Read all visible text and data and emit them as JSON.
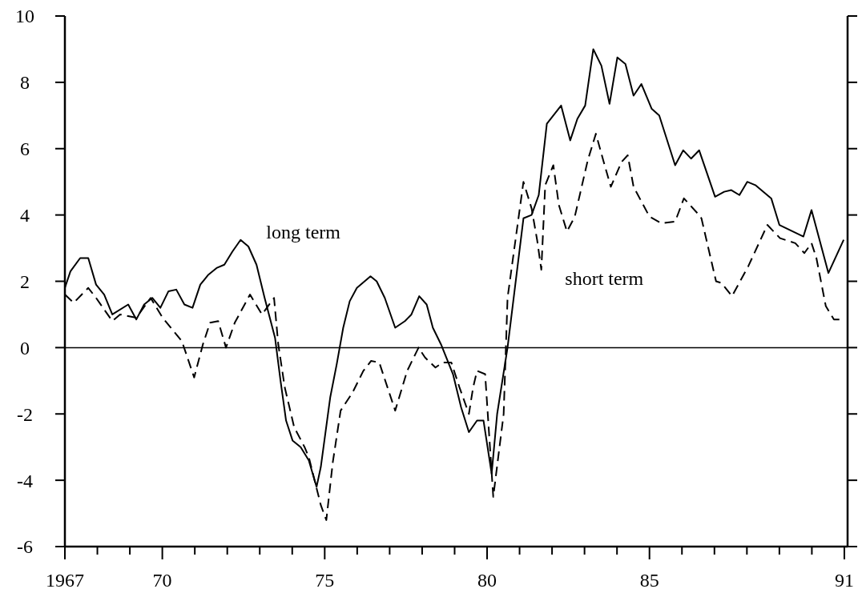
{
  "chart_data": {
    "type": "line",
    "xlim": [
      1967,
      1991.1
    ],
    "ylim": [
      -6,
      10
    ],
    "xticks": [
      {
        "value": 1967,
        "label": "1967"
      },
      {
        "value": 1968,
        "label": null
      },
      {
        "value": 1969,
        "label": null
      },
      {
        "value": 1970,
        "label": "70"
      },
      {
        "value": 1971,
        "label": null
      },
      {
        "value": 1972,
        "label": null
      },
      {
        "value": 1973,
        "label": null
      },
      {
        "value": 1974,
        "label": null
      },
      {
        "value": 1975,
        "label": "75"
      },
      {
        "value": 1976,
        "label": null
      },
      {
        "value": 1977,
        "label": null
      },
      {
        "value": 1978,
        "label": null
      },
      {
        "value": 1979,
        "label": null
      },
      {
        "value": 1980,
        "label": "80"
      },
      {
        "value": 1981,
        "label": null
      },
      {
        "value": 1982,
        "label": null
      },
      {
        "value": 1983,
        "label": null
      },
      {
        "value": 1984,
        "label": null
      },
      {
        "value": 1985,
        "label": "85"
      },
      {
        "value": 1986,
        "label": null
      },
      {
        "value": 1987,
        "label": null
      },
      {
        "value": 1988,
        "label": null
      },
      {
        "value": 1989,
        "label": null
      },
      {
        "value": 1990,
        "label": null
      },
      {
        "value": 1991,
        "label": "91"
      }
    ],
    "yticks": [
      -6,
      -4,
      -2,
      0,
      2,
      4,
      6,
      8,
      10
    ],
    "grid": false,
    "marker": "none",
    "ref_lines": [
      {
        "axis": "y",
        "value": 0,
        "color": "#000000"
      }
    ],
    "series": [
      {
        "name": "long term",
        "color": "#000000",
        "line_style": "solid",
        "x": [
          1967.0,
          1967.17,
          1967.47,
          1967.72,
          1967.96,
          1968.21,
          1968.46,
          1968.95,
          1969.2,
          1969.44,
          1969.69,
          1969.94,
          1970.19,
          1970.43,
          1970.68,
          1970.93,
          1971.17,
          1971.42,
          1971.67,
          1971.91,
          1972.16,
          1972.41,
          1972.65,
          1972.9,
          1973.15,
          1973.47,
          1973.64,
          1973.81,
          1974.01,
          1974.26,
          1974.51,
          1974.75,
          1974.88,
          1975.17,
          1975.37,
          1975.57,
          1975.77,
          1975.99,
          1976.41,
          1976.6,
          1976.85,
          1977.17,
          1977.47,
          1977.67,
          1977.91,
          1978.14,
          1978.33,
          1978.58,
          1978.95,
          1979.2,
          1979.44,
          1979.69,
          1979.89,
          1980.14,
          1980.31,
          1980.63,
          1981.12,
          1981.37,
          1981.59,
          1981.84,
          1982.28,
          1982.56,
          1982.78,
          1983.02,
          1983.27,
          1983.52,
          1983.77,
          1984.01,
          1984.26,
          1984.51,
          1984.75,
          1985.07,
          1985.3,
          1985.79,
          1986.04,
          1986.28,
          1986.53,
          1987.02,
          1987.3,
          1987.52,
          1987.77,
          1988.01,
          1988.26,
          1988.75,
          1989.0,
          1989.74,
          1989.99,
          1990.51,
          1990.98
        ],
        "values": [
          1.8,
          2.3,
          2.7,
          2.7,
          1.9,
          1.6,
          1.0,
          1.3,
          0.85,
          1.3,
          1.5,
          1.2,
          1.7,
          1.75,
          1.3,
          1.2,
          1.9,
          2.2,
          2.4,
          2.5,
          2.9,
          3.25,
          3.05,
          2.5,
          1.5,
          0.3,
          -1.0,
          -2.2,
          -2.8,
          -3.0,
          -3.4,
          -4.2,
          -3.6,
          -1.5,
          -0.5,
          0.6,
          1.4,
          1.8,
          2.15,
          2.0,
          1.5,
          0.6,
          0.8,
          1.0,
          1.55,
          1.3,
          0.6,
          0.1,
          -0.8,
          -1.8,
          -2.55,
          -2.2,
          -2.2,
          -3.8,
          -2.0,
          0,
          3.9,
          4.0,
          4.6,
          6.75,
          7.3,
          6.25,
          6.9,
          7.3,
          9.0,
          8.5,
          7.35,
          8.75,
          8.55,
          7.6,
          7.95,
          7.2,
          7.0,
          5.5,
          5.95,
          5.7,
          5.95,
          4.55,
          4.7,
          4.75,
          4.6,
          5.0,
          4.9,
          4.5,
          3.7,
          3.35,
          4.15,
          2.25,
          3.25
        ]
      },
      {
        "name": "short term",
        "color": "#000000",
        "line_style": "dashed",
        "x": [
          1967.0,
          1967.27,
          1967.72,
          1967.96,
          1968.46,
          1968.7,
          1969.2,
          1969.64,
          1970.01,
          1970.6,
          1970.98,
          1971.25,
          1971.47,
          1971.72,
          1971.96,
          1972.23,
          1972.7,
          1973.07,
          1973.44,
          1973.57,
          1973.77,
          1974.06,
          1974.38,
          1974.51,
          1974.88,
          1975.05,
          1975.25,
          1975.49,
          1975.86,
          1976.19,
          1976.43,
          1976.68,
          1977.17,
          1977.54,
          1977.89,
          1978.09,
          1978.41,
          1978.63,
          1978.9,
          1979.15,
          1979.44,
          1979.57,
          1979.69,
          1979.94,
          1980.19,
          1980.51,
          1980.63,
          1980.98,
          1981.12,
          1981.37,
          1981.54,
          1981.67,
          1981.79,
          1982.04,
          1982.21,
          1982.46,
          1982.7,
          1983.1,
          1983.35,
          1983.59,
          1983.81,
          1984.14,
          1984.33,
          1984.51,
          1985.0,
          1985.37,
          1985.79,
          1986.06,
          1986.48,
          1986.6,
          1987.05,
          1987.22,
          1987.54,
          1988.04,
          1988.63,
          1989.02,
          1989.49,
          1989.77,
          1989.99,
          1990.14,
          1990.43,
          1990.68,
          1990.85
        ],
        "values": [
          1.6,
          1.35,
          1.8,
          1.5,
          0.8,
          1.0,
          0.9,
          1.5,
          0.9,
          0.2,
          -0.9,
          0.1,
          0.75,
          0.8,
          0.0,
          0.75,
          1.6,
          1.0,
          1.5,
          0.1,
          -1.2,
          -2.4,
          -3.0,
          -3.3,
          -4.75,
          -5.2,
          -3.45,
          -1.9,
          -1.35,
          -0.7,
          -0.4,
          -0.45,
          -1.9,
          -0.7,
          0.0,
          -0.3,
          -0.6,
          -0.45,
          -0.45,
          -1.2,
          -2.0,
          -1.2,
          -0.7,
          -0.8,
          -4.5,
          -2.0,
          1.5,
          4.0,
          5.0,
          4.2,
          3.25,
          2.35,
          4.9,
          5.5,
          4.3,
          3.5,
          3.95,
          5.65,
          6.45,
          5.6,
          4.85,
          5.6,
          5.8,
          4.85,
          3.95,
          3.75,
          3.8,
          4.5,
          4.05,
          3.9,
          2.0,
          1.95,
          1.55,
          2.45,
          3.7,
          3.3,
          3.15,
          2.85,
          3.15,
          2.7,
          1.25,
          0.85,
          0.85
        ]
      }
    ]
  }
}
